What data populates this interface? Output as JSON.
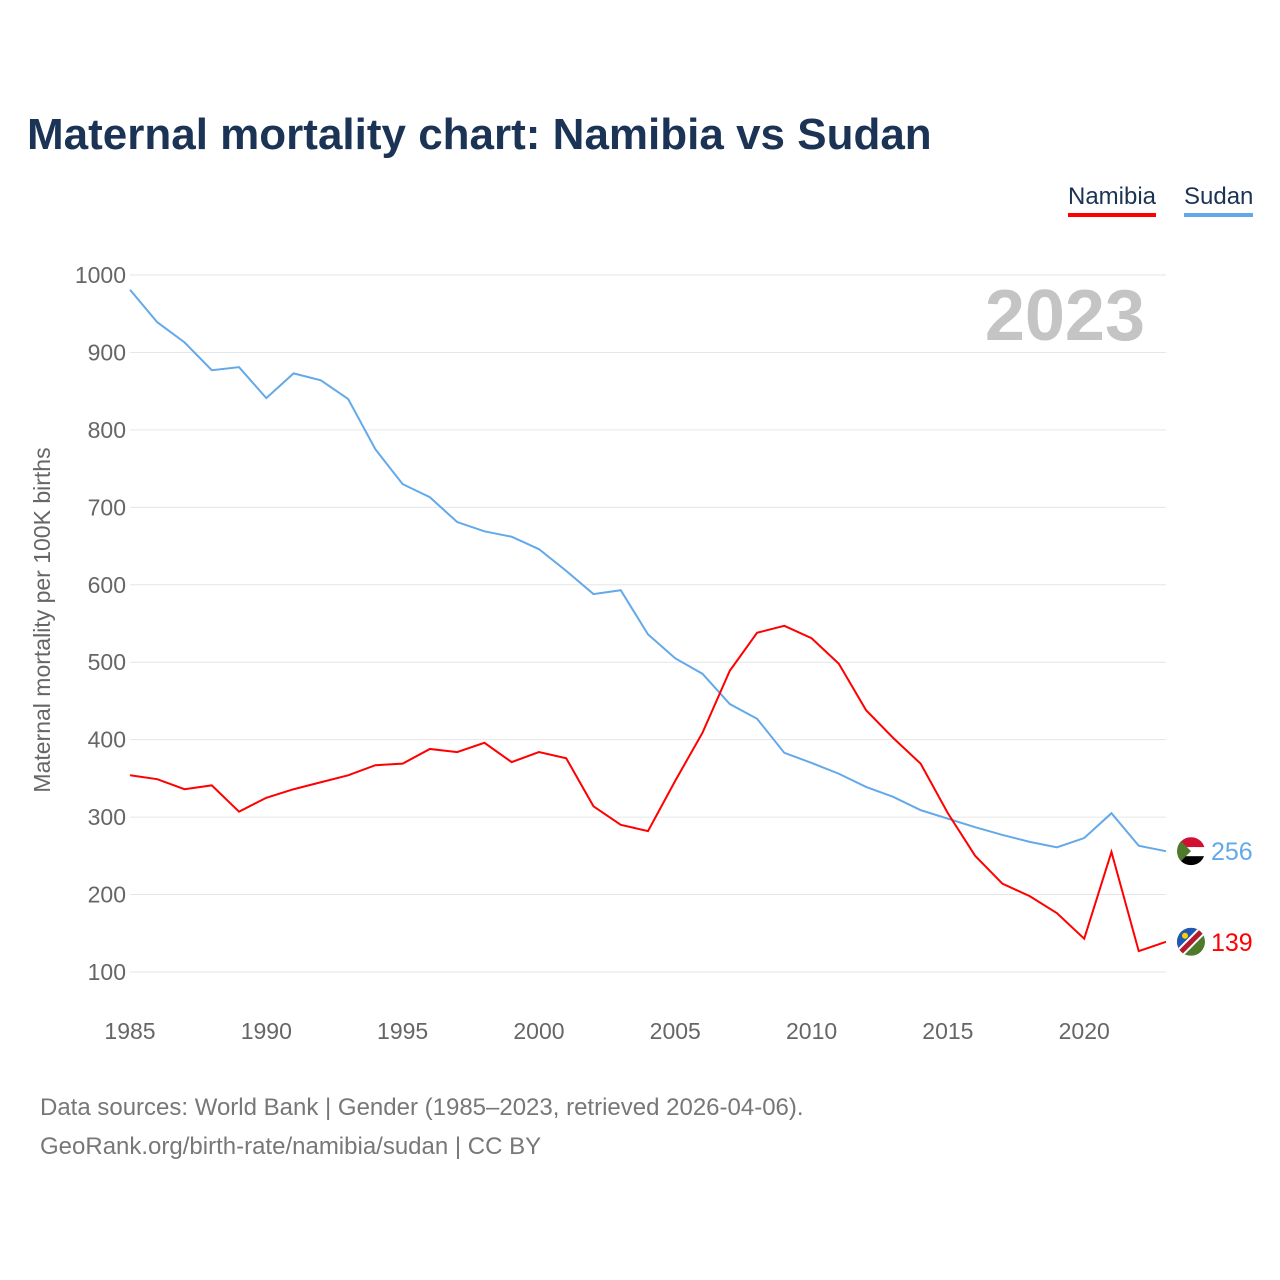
{
  "title": "Maternal mortality chart: Namibia vs Sudan",
  "legend": [
    "Namibia",
    "Sudan"
  ],
  "year_label": "2023",
  "footer": [
    "Data sources: World Bank | Gender (1985–2023, retrieved 2026-04-06).",
    "GeoRank.org/birth-rate/namibia/sudan | CC BY"
  ],
  "chart_data": {
    "type": "line",
    "title": "Maternal mortality chart: Namibia vs Sudan",
    "ylabel": "Maternal mortality per 100K births",
    "xlabel": "",
    "xlim": [
      1985,
      2023
    ],
    "ylim": [
      100,
      1000
    ],
    "yticks": [
      100,
      200,
      300,
      400,
      500,
      600,
      700,
      800,
      900,
      1000
    ],
    "xticks": [
      1985,
      1990,
      1995,
      2000,
      2005,
      2010,
      2015,
      2020
    ],
    "x": [
      1985,
      1986,
      1987,
      1988,
      1989,
      1990,
      1991,
      1992,
      1993,
      1994,
      1995,
      1996,
      1997,
      1998,
      1999,
      2000,
      2001,
      2002,
      2003,
      2004,
      2005,
      2006,
      2007,
      2008,
      2009,
      2010,
      2011,
      2012,
      2013,
      2014,
      2015,
      2016,
      2017,
      2018,
      2019,
      2020,
      2021,
      2022,
      2023
    ],
    "series": [
      {
        "name": "Namibia",
        "color": "#ff0000",
        "end_label": "139",
        "values": [
          354,
          349,
          336,
          341,
          307,
          325,
          336,
          345,
          354,
          367,
          369,
          388,
          384,
          396,
          371,
          384,
          376,
          314,
          290,
          282,
          347,
          409,
          489,
          538,
          547,
          531,
          498,
          438,
          402,
          369,
          305,
          250,
          214,
          198,
          176,
          143,
          255,
          127,
          139
        ]
      },
      {
        "name": "Sudan",
        "color": "#63a9ea",
        "end_label": "256",
        "values": [
          981,
          939,
          913,
          877,
          881,
          841,
          873,
          864,
          840,
          775,
          730,
          713,
          681,
          669,
          662,
          646,
          618,
          588,
          593,
          536,
          505,
          485,
          446,
          427,
          383,
          370,
          356,
          339,
          326,
          309,
          298,
          287,
          277,
          268,
          261,
          273,
          305,
          263,
          256
        ]
      }
    ]
  }
}
